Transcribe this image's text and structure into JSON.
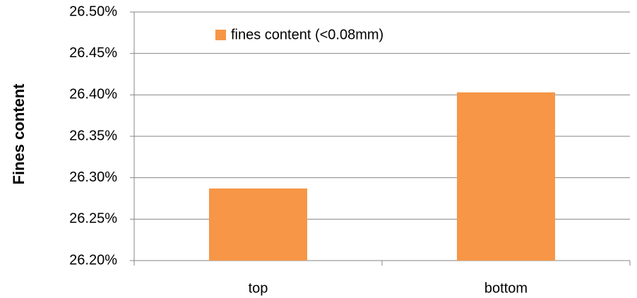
{
  "chart_data": {
    "type": "bar",
    "y_label": "Fines content",
    "categories": [
      "top",
      "bottom"
    ],
    "series": [
      {
        "name": "fines content (<0.08mm)",
        "color": "#f79646",
        "values": [
          26.287,
          26.403
        ]
      }
    ],
    "ylim": [
      26.2,
      26.5
    ],
    "yticks": [
      {
        "value": 26.2,
        "label": "26.20%"
      },
      {
        "value": 26.25,
        "label": "26.25%"
      },
      {
        "value": 26.3,
        "label": "26.30%"
      },
      {
        "value": 26.35,
        "label": "26.35%"
      },
      {
        "value": 26.4,
        "label": "26.40%"
      },
      {
        "value": 26.45,
        "label": "26.45%"
      },
      {
        "value": 26.5,
        "label": "26.50%"
      }
    ],
    "grid": true,
    "legend_position": "top"
  }
}
